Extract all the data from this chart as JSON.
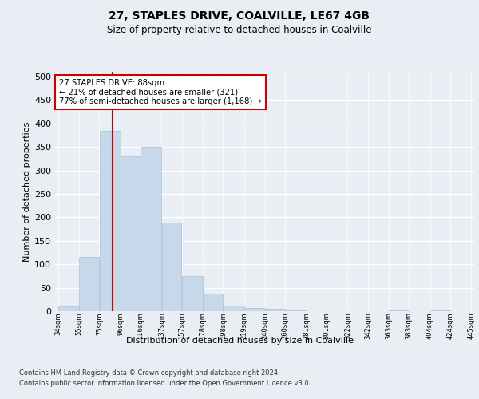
{
  "title1": "27, STAPLES DRIVE, COALVILLE, LE67 4GB",
  "title2": "Size of property relative to detached houses in Coalville",
  "xlabel": "Distribution of detached houses by size in Coalville",
  "ylabel": "Number of detached properties",
  "bins": [
    "34sqm",
    "55sqm",
    "75sqm",
    "96sqm",
    "116sqm",
    "137sqm",
    "157sqm",
    "178sqm",
    "198sqm",
    "219sqm",
    "240sqm",
    "260sqm",
    "281sqm",
    "301sqm",
    "322sqm",
    "342sqm",
    "363sqm",
    "383sqm",
    "404sqm",
    "424sqm",
    "445sqm"
  ],
  "bar_values": [
    10,
    115,
    385,
    330,
    350,
    188,
    75,
    38,
    12,
    6,
    5,
    1,
    0,
    0,
    0,
    0,
    2,
    0,
    2,
    0
  ],
  "bar_color": "#c8d8eb",
  "bar_edge_color": "#a8c0d8",
  "vline_color": "#cc0000",
  "annotation_text": "27 STAPLES DRIVE: 88sqm\n← 21% of detached houses are smaller (321)\n77% of semi-detached houses are larger (1,168) →",
  "annotation_box_color": "#ffffff",
  "annotation_box_edge": "#cc0000",
  "ylim": [
    0,
    510
  ],
  "yticks": [
    0,
    50,
    100,
    150,
    200,
    250,
    300,
    350,
    400,
    450,
    500
  ],
  "footer1": "Contains HM Land Registry data © Crown copyright and database right 2024.",
  "footer2": "Contains public sector information licensed under the Open Government Licence v3.0.",
  "bg_color": "#e8eef4",
  "plot_bg_color": "#e8eef4",
  "bin_edges": [
    34,
    55,
    75,
    96,
    116,
    137,
    157,
    178,
    198,
    219,
    240,
    260,
    281,
    301,
    322,
    342,
    363,
    383,
    404,
    424,
    445
  ],
  "vline_x": 88
}
